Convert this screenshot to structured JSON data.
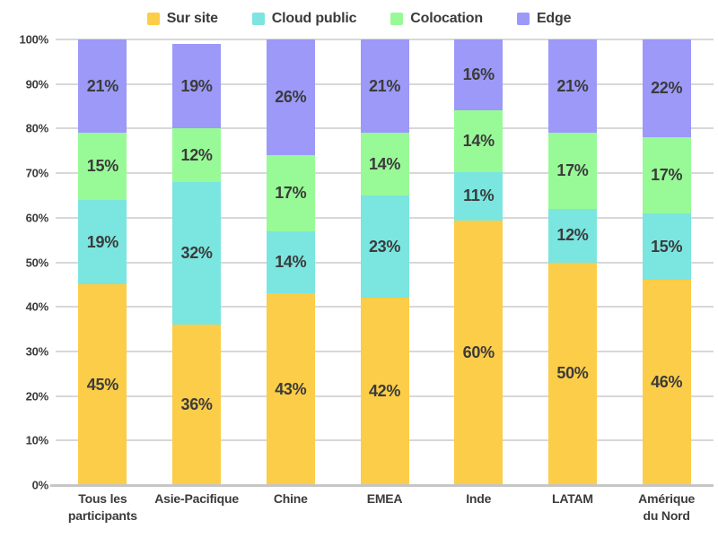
{
  "chart_data": {
    "type": "bar",
    "stacked": true,
    "unit": "%",
    "categories": [
      "Tous les\nparticipants",
      "Asie-Pacifique",
      "Chine",
      "EMEA",
      "Inde",
      "LATAM",
      "Amérique\ndu Nord"
    ],
    "series": [
      {
        "name": "Sur site",
        "color": "#FCCD48",
        "values": [
          45,
          36,
          43,
          42,
          60,
          50,
          46
        ]
      },
      {
        "name": "Cloud public",
        "color": "#7BE5E0",
        "values": [
          19,
          32,
          14,
          23,
          11,
          12,
          15
        ]
      },
      {
        "name": "Colocation",
        "color": "#98FA96",
        "values": [
          15,
          12,
          17,
          14,
          14,
          17,
          17
        ]
      },
      {
        "name": "Edge",
        "color": "#9C99F8",
        "values": [
          21,
          19,
          26,
          21,
          16,
          21,
          22
        ]
      }
    ],
    "ylim": [
      0,
      100
    ],
    "yticks": [
      "0%",
      "10%",
      "20%",
      "30%",
      "40%",
      "50%",
      "60%",
      "70%",
      "80%",
      "90%",
      "100%"
    ],
    "legend_position": "top",
    "grid": "horizontal",
    "colors": {
      "label_text": "#3B3B3B",
      "gridline": "#D8D8D8",
      "axis_line": "#C6C6C6",
      "background": "#FFFFFF"
    }
  }
}
